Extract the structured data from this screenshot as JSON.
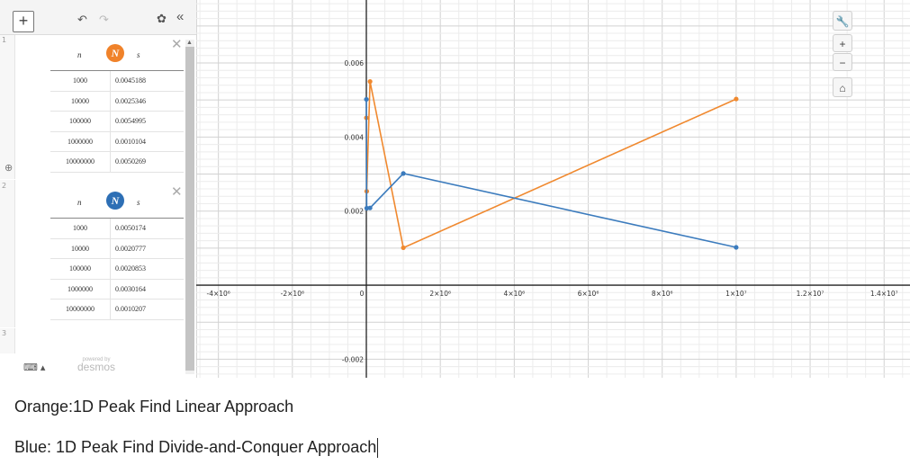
{
  "toolbar": {
    "plus": "+",
    "undo": "↶",
    "redo": "↷",
    "gear": "✿",
    "collapse": "«"
  },
  "row_numbers": [
    "1",
    "2",
    "3"
  ],
  "tables": [
    {
      "header_n": "n",
      "header_s": "s",
      "badge_glyph": "N",
      "badge_color": "#f0822a",
      "rows": [
        {
          "n": "1000",
          "s": "0.0045188"
        },
        {
          "n": "10000",
          "s": "0.0025346"
        },
        {
          "n": "100000",
          "s": "0.0054995"
        },
        {
          "n": "1000000",
          "s": "0.0010104"
        },
        {
          "n": "10000000",
          "s": "0.0050269"
        }
      ]
    },
    {
      "header_n": "n",
      "header_s": "s",
      "badge_glyph": "N",
      "badge_color": "#2d6fb5",
      "rows": [
        {
          "n": "1000",
          "s": "0.0050174"
        },
        {
          "n": "10000",
          "s": "0.0020777"
        },
        {
          "n": "100000",
          "s": "0.0020853"
        },
        {
          "n": "1000000",
          "s": "0.0030164"
        },
        {
          "n": "10000000",
          "s": "0.0010207"
        }
      ]
    }
  ],
  "keyboard": "⌨ ▴",
  "branding": {
    "powered_by": "powered by",
    "name": "desmos"
  },
  "graph_tools": {
    "wrench": "🔧",
    "zoom_in": "+",
    "zoom_out": "−",
    "home": "⌂"
  },
  "zoom_hint": "⊕",
  "chart_data": {
    "type": "line",
    "title": "",
    "xlabel": "",
    "ylabel": "",
    "xlim": [
      -4600000.0,
      14700000.0
    ],
    "ylim": [
      -0.0025,
      0.0077
    ],
    "x_ticks": [
      {
        "v": -4000000,
        "label": "-4×10⁶"
      },
      {
        "v": -2000000,
        "label": "-2×10⁶"
      },
      {
        "v": 0,
        "label": "0"
      },
      {
        "v": 2000000,
        "label": "2×10⁶"
      },
      {
        "v": 4000000,
        "label": "4×10⁶"
      },
      {
        "v": 6000000,
        "label": "6×10⁶"
      },
      {
        "v": 8000000,
        "label": "8×10⁶"
      },
      {
        "v": 10000000,
        "label": "1×10⁷"
      },
      {
        "v": 12000000,
        "label": "1.2×10⁷"
      },
      {
        "v": 14000000,
        "label": "1.4×10⁷"
      }
    ],
    "y_ticks": [
      {
        "v": -0.002,
        "label": "-0.002"
      },
      {
        "v": 0.002,
        "label": "0.002"
      },
      {
        "v": 0.004,
        "label": "0.004"
      },
      {
        "v": 0.006,
        "label": "0.006"
      }
    ],
    "grid": true,
    "series": [
      {
        "color": "#f0892f",
        "points": [
          [
            1000,
            0.0045188
          ],
          [
            10000,
            0.0025346
          ],
          [
            100000,
            0.0054995
          ],
          [
            1000000,
            0.0010104
          ],
          [
            10000000,
            0.0050269
          ]
        ]
      },
      {
        "color": "#3b7bbd",
        "points": [
          [
            1000,
            0.0050174
          ],
          [
            10000,
            0.0020777
          ],
          [
            100000,
            0.0020853
          ],
          [
            1000000,
            0.0030164
          ],
          [
            10000000,
            0.0010207
          ]
        ]
      }
    ]
  },
  "captions": {
    "line1": "Orange:1D Peak Find Linear Approach",
    "line2": "Blue: 1D Peak Find Divide-and-Conquer Approach"
  }
}
